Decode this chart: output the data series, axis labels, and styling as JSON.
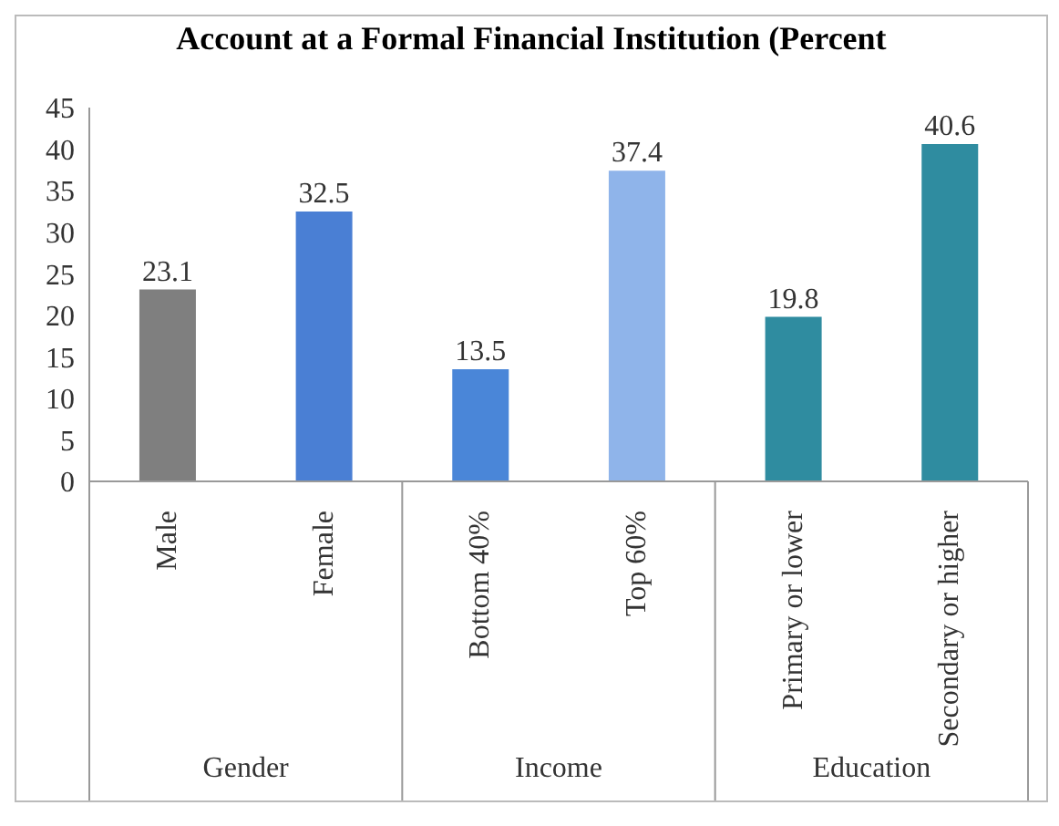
{
  "chart_data": {
    "type": "bar",
    "title": "Account at a Formal Financial Institution (Percent",
    "categories": [
      "Male",
      "Female",
      "Bottom 40%",
      "Top 60%",
      "Primary or lower",
      "Secondary or higher"
    ],
    "values": [
      23.1,
      32.5,
      13.5,
      37.4,
      19.8,
      40.6
    ],
    "colors": [
      "#7f7f7f",
      "#4a7fd4",
      "#4a86d8",
      "#8fb4ea",
      "#2f8ca0",
      "#2f8ca0"
    ],
    "ylim": [
      0,
      45
    ],
    "yticks": [
      0,
      5,
      10,
      15,
      20,
      25,
      30,
      35,
      40,
      45
    ],
    "data_labels": true,
    "annotations": [
      "Gender",
      "Income",
      "Education"
    ]
  }
}
